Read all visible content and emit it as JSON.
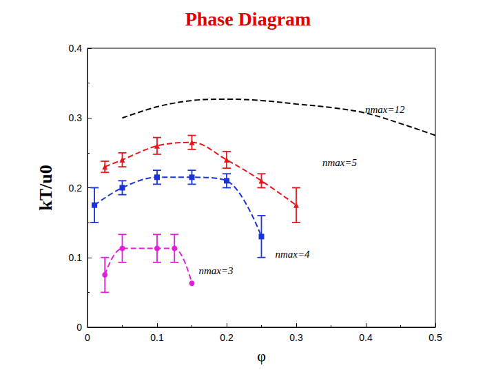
{
  "chart_data": {
    "type": "line",
    "title": "Phase Diagram",
    "x_label": "φ",
    "y_label": "kT/u0",
    "xlim": [
      0,
      0.5
    ],
    "xticks": [
      0,
      0.1,
      0.2,
      0.3,
      0.4,
      0.5
    ],
    "ylim": [
      0,
      0.4
    ],
    "yticks": [
      0,
      0.1,
      0.2,
      0.3,
      0.4
    ],
    "grid": false,
    "series": [
      {
        "name": "nmax=12",
        "color": "#000000",
        "marker": "none",
        "line_style": "dashed",
        "x": [
          0.05,
          0.1,
          0.15,
          0.2,
          0.25,
          0.3,
          0.35,
          0.4,
          0.45,
          0.5
        ],
        "values": [
          0.3,
          0.316,
          0.325,
          0.327,
          0.325,
          0.32,
          0.315,
          0.307,
          0.292,
          0.275
        ]
      },
      {
        "name": "nmax=5",
        "color": "#e8141b",
        "marker": "triangle",
        "line_style": "dashed",
        "x": [
          0.025,
          0.05,
          0.1,
          0.15,
          0.2,
          0.25,
          0.3
        ],
        "values": [
          0.23,
          0.24,
          0.26,
          0.265,
          0.24,
          0.21,
          0.175
        ],
        "errors": [
          0.008,
          0.01,
          0.012,
          0.01,
          0.012,
          0.01,
          0.025
        ]
      },
      {
        "name": "nmax=4",
        "color": "#1a33d6",
        "marker": "square",
        "line_style": "dashed",
        "x": [
          0.01,
          0.05,
          0.1,
          0.15,
          0.2,
          0.25
        ],
        "values": [
          0.175,
          0.2,
          0.215,
          0.215,
          0.21,
          0.13
        ],
        "errors": [
          0.025,
          0.01,
          0.01,
          0.01,
          0.01,
          0.03
        ]
      },
      {
        "name": "nmax=3",
        "color": "#e020d8",
        "marker": "circle",
        "line_style": "dashed",
        "x": [
          0.025,
          0.05,
          0.1,
          0.125,
          0.15
        ],
        "values": [
          0.075,
          0.113,
          0.113,
          0.113,
          0.063
        ],
        "errors": [
          0.025,
          0.02,
          0.02,
          0.02,
          0
        ]
      }
    ]
  }
}
